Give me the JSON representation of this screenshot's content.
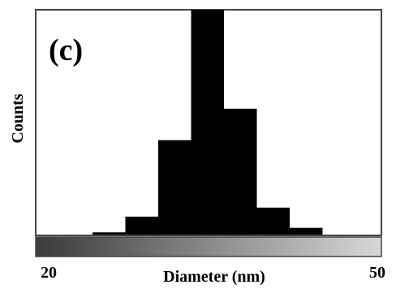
{
  "chart_data": {
    "type": "bar",
    "panel_label": "(c)",
    "xlabel": "Diameter (nm)",
    "ylabel": "Counts",
    "xlim": [
      20,
      50
    ],
    "x_tick_labels": [
      "20",
      "50"
    ],
    "bins": [
      {
        "start": 24,
        "end": 27,
        "value": 1
      },
      {
        "start": 27,
        "end": 30,
        "value": 8
      },
      {
        "start": 30,
        "end": 33,
        "value": 42
      },
      {
        "start": 33,
        "end": 36,
        "value": 100
      },
      {
        "start": 36,
        "end": 39,
        "value": 56
      },
      {
        "start": 39,
        "end": 42,
        "value": 12
      },
      {
        "start": 42,
        "end": 45,
        "value": 3
      }
    ],
    "ylim": [
      0,
      100
    ],
    "grid": false,
    "colors": {
      "bars": "#000000",
      "frame": "#444444",
      "gradient_dark": "#3a3a3a",
      "gradient_light": "#d8d8d8"
    }
  }
}
